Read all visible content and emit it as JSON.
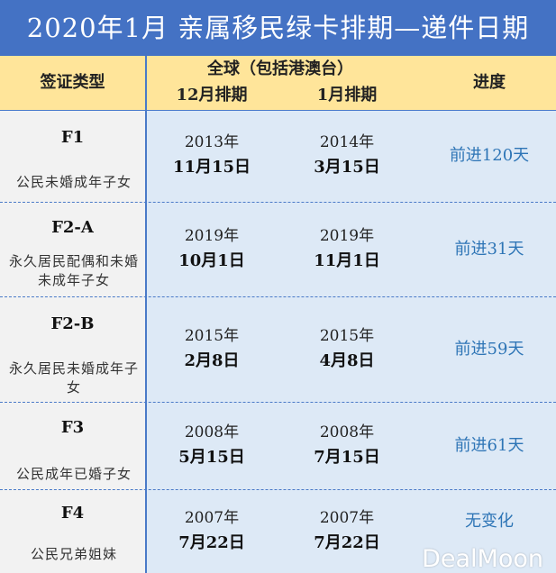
{
  "title": "2020年1月  亲属移民绿卡排期—递件日期",
  "header": {
    "visa_type": "签证类型",
    "region": "全球（包括港澳台）",
    "col_prev": "12月排期",
    "col_curr": "1月排期",
    "progress": "进度"
  },
  "rows": [
    {
      "code": "F1",
      "desc": "公民未婚成年子女",
      "prev_year": "2013年",
      "prev_date": "11月15日",
      "curr_year": "2014年",
      "curr_date": "3月15日",
      "progress": "前进120天"
    },
    {
      "code": "F2-A",
      "desc": "永久居民配偶和未婚未成年子女",
      "prev_year": "2019年",
      "prev_date": "10月1日",
      "curr_year": "2019年",
      "curr_date": "11月1日",
      "progress": "前进31天"
    },
    {
      "code": "F2-B",
      "desc": "永久居民未婚成年子女",
      "prev_year": "2015年",
      "prev_date": "2月8日",
      "curr_year": "2015年",
      "curr_date": "4月8日",
      "progress": "前进59天"
    },
    {
      "code": "F3",
      "desc": "公民成年已婚子女",
      "prev_year": "2008年",
      "prev_date": "5月15日",
      "curr_year": "2008年",
      "curr_date": "7月15日",
      "progress": "前进61天"
    },
    {
      "code": "F4",
      "desc": "公民兄弟姐妹",
      "prev_year": "2007年",
      "prev_date": "7月22日",
      "curr_year": "2007年",
      "curr_date": "7月22日",
      "progress": "无变化"
    }
  ],
  "watermark": "DealMoon",
  "colors": {
    "title_bg": "#4472c4",
    "header_bg": "#ffe59a",
    "body_bg": "#dde9f6",
    "left_bg": "#f2f2f2",
    "progress_text": "#2e75b6"
  }
}
